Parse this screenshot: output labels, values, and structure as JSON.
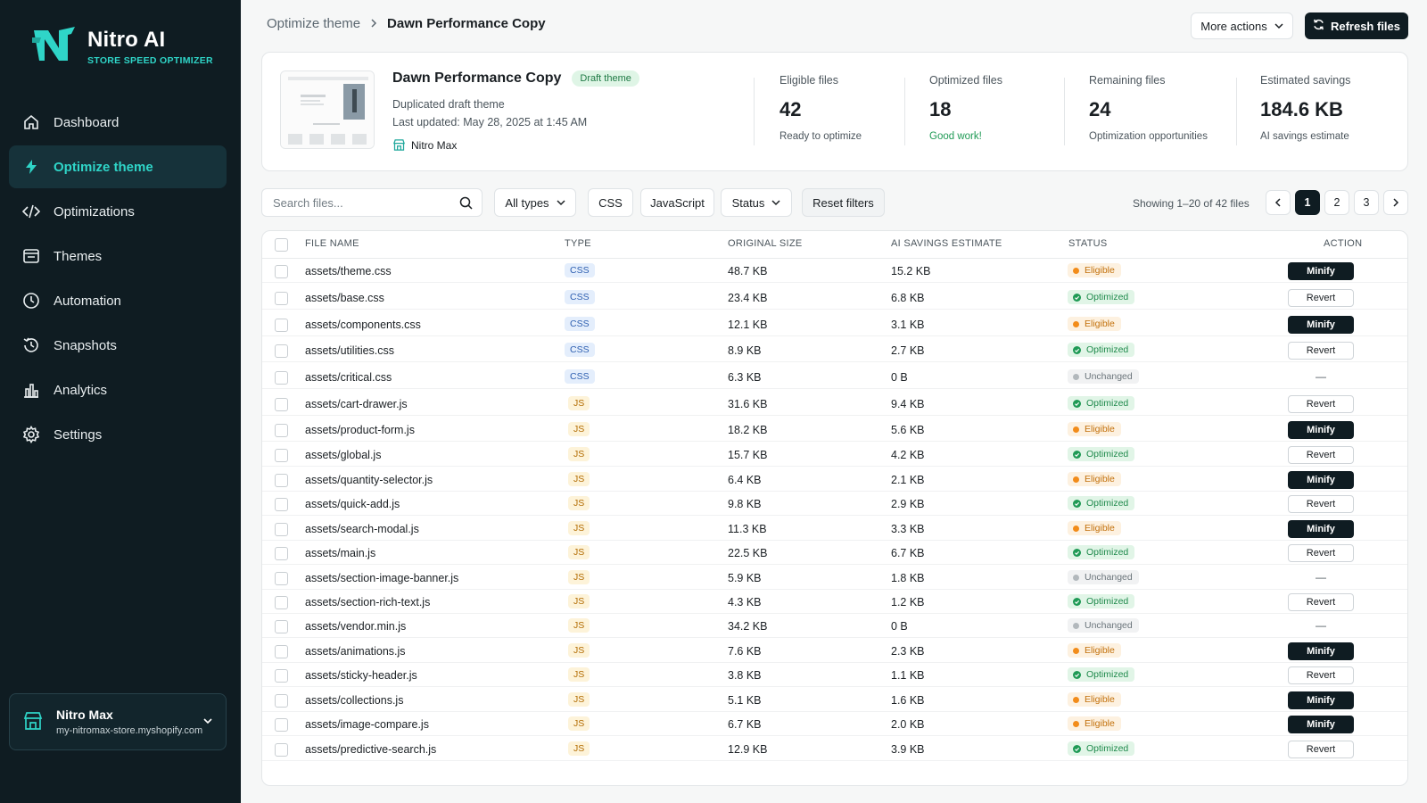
{
  "app": {
    "name": "Nitro AI",
    "tagline": "STORE SPEED OPTIMIZER"
  },
  "sidebar": {
    "items": [
      {
        "label": "Dashboard",
        "icon": "home-icon",
        "active": false
      },
      {
        "label": "Optimize theme",
        "icon": "bolt-icon",
        "active": true
      },
      {
        "label": "Optimizations",
        "icon": "code-icon",
        "active": false
      },
      {
        "label": "Themes",
        "icon": "layout-icon",
        "active": false
      },
      {
        "label": "Automation",
        "icon": "clock-icon",
        "active": false
      },
      {
        "label": "Snapshots",
        "icon": "history-icon",
        "active": false
      },
      {
        "label": "Analytics",
        "icon": "bar-chart-icon",
        "active": false
      },
      {
        "label": "Settings",
        "icon": "gear-icon",
        "active": false
      }
    ],
    "store": {
      "name": "Nitro Max",
      "url": "my-nitromax-store.myshopify.com"
    }
  },
  "header": {
    "breadcrumb_parent": "Optimize theme",
    "breadcrumb_current": "Dawn Performance Copy",
    "more_actions_label": "More actions",
    "refresh_label": "Refresh files"
  },
  "summary": {
    "theme_name": "Dawn Performance Copy",
    "badge": "Draft theme",
    "subtitle": "Duplicated draft theme",
    "last_updated": "Last updated: May 28, 2025 at 1:45 AM",
    "store": "Nitro Max",
    "stats": [
      {
        "label": "Eligible files",
        "value": "42",
        "note": "Ready to optimize"
      },
      {
        "label": "Optimized files",
        "value": "18",
        "note": "Good work!"
      },
      {
        "label": "Remaining files",
        "value": "24",
        "note": "Optimization opportunities"
      },
      {
        "label": "Estimated savings",
        "value": "184.6 KB",
        "note": "AI savings estimate"
      }
    ]
  },
  "filters": {
    "search_placeholder": "Search files...",
    "all_types_label": "All types",
    "css_label": "CSS",
    "js_label": "JavaScript",
    "status_label": "Status",
    "reset_label": "Reset filters",
    "showing": "Showing 1–20 of 42 files",
    "pages": [
      "1",
      "2",
      "3"
    ],
    "current_page": "1"
  },
  "table": {
    "columns": [
      "FILE NAME",
      "TYPE",
      "ORIGINAL SIZE",
      "AI SAVINGS ESTIMATE",
      "STATUS",
      "ACTION"
    ],
    "rows": [
      {
        "file": "assets/theme.css",
        "type": "CSS",
        "size": "48.7 KB",
        "savings": "15.2 KB",
        "status": "Eligible",
        "action": "Minify"
      },
      {
        "file": "assets/base.css",
        "type": "CSS",
        "size": "23.4 KB",
        "savings": "6.8 KB",
        "status": "Optimized",
        "action": "Revert"
      },
      {
        "file": "assets/components.css",
        "type": "CSS",
        "size": "12.1 KB",
        "savings": "3.1 KB",
        "status": "Eligible",
        "action": "Minify"
      },
      {
        "file": "assets/utilities.css",
        "type": "CSS",
        "size": "8.9 KB",
        "savings": "2.7 KB",
        "status": "Optimized",
        "action": "Revert"
      },
      {
        "file": "assets/critical.css",
        "type": "CSS",
        "size": "6.3 KB",
        "savings": "0 B",
        "status": "Unchanged",
        "action": "—"
      },
      {
        "file": "assets/cart-drawer.js",
        "type": "JS",
        "size": "31.6 KB",
        "savings": "9.4 KB",
        "status": "Optimized",
        "action": "Revert"
      },
      {
        "file": "assets/product-form.js",
        "type": "JS",
        "size": "18.2 KB",
        "savings": "5.6 KB",
        "status": "Eligible",
        "action": "Minify"
      },
      {
        "file": "assets/global.js",
        "type": "JS",
        "size": "15.7 KB",
        "savings": "4.2 KB",
        "status": "Optimized",
        "action": "Revert"
      },
      {
        "file": "assets/quantity-selector.js",
        "type": "JS",
        "size": "6.4 KB",
        "savings": "2.1 KB",
        "status": "Eligible",
        "action": "Minify"
      },
      {
        "file": "assets/quick-add.js",
        "type": "JS",
        "size": "9.8 KB",
        "savings": "2.9 KB",
        "status": "Optimized",
        "action": "Revert"
      },
      {
        "file": "assets/search-modal.js",
        "type": "JS",
        "size": "11.3 KB",
        "savings": "3.3 KB",
        "status": "Eligible",
        "action": "Minify"
      },
      {
        "file": "assets/main.js",
        "type": "JS",
        "size": "22.5 KB",
        "savings": "6.7 KB",
        "status": "Optimized",
        "action": "Revert"
      },
      {
        "file": "assets/section-image-banner.js",
        "type": "JS",
        "size": "5.9 KB",
        "savings": "1.8 KB",
        "status": "Unchanged",
        "action": "—"
      },
      {
        "file": "assets/section-rich-text.js",
        "type": "JS",
        "size": "4.3 KB",
        "savings": "1.2 KB",
        "status": "Optimized",
        "action": "Revert"
      },
      {
        "file": "assets/vendor.min.js",
        "type": "JS",
        "size": "34.2 KB",
        "savings": "0 B",
        "status": "Unchanged",
        "action": "—"
      },
      {
        "file": "assets/animations.js",
        "type": "JS",
        "size": "7.6 KB",
        "savings": "2.3 KB",
        "status": "Eligible",
        "action": "Minify"
      },
      {
        "file": "assets/sticky-header.js",
        "type": "JS",
        "size": "3.8 KB",
        "savings": "1.1 KB",
        "status": "Optimized",
        "action": "Revert"
      },
      {
        "file": "assets/collections.js",
        "type": "JS",
        "size": "5.1 KB",
        "savings": "1.6 KB",
        "status": "Eligible",
        "action": "Minify"
      },
      {
        "file": "assets/image-compare.js",
        "type": "JS",
        "size": "6.7 KB",
        "savings": "2.0 KB",
        "status": "Eligible",
        "action": "Minify"
      },
      {
        "file": "assets/predictive-search.js",
        "type": "JS",
        "size": "12.9 KB",
        "savings": "3.9 KB",
        "status": "Optimized",
        "action": "Revert"
      }
    ]
  },
  "colors": {
    "sidebar_bg": "#0f1c22",
    "accent": "#2fd5c8",
    "eligible": "#f28c1a",
    "optimized": "#1f9a55",
    "unchanged": "#b2b8bc"
  }
}
